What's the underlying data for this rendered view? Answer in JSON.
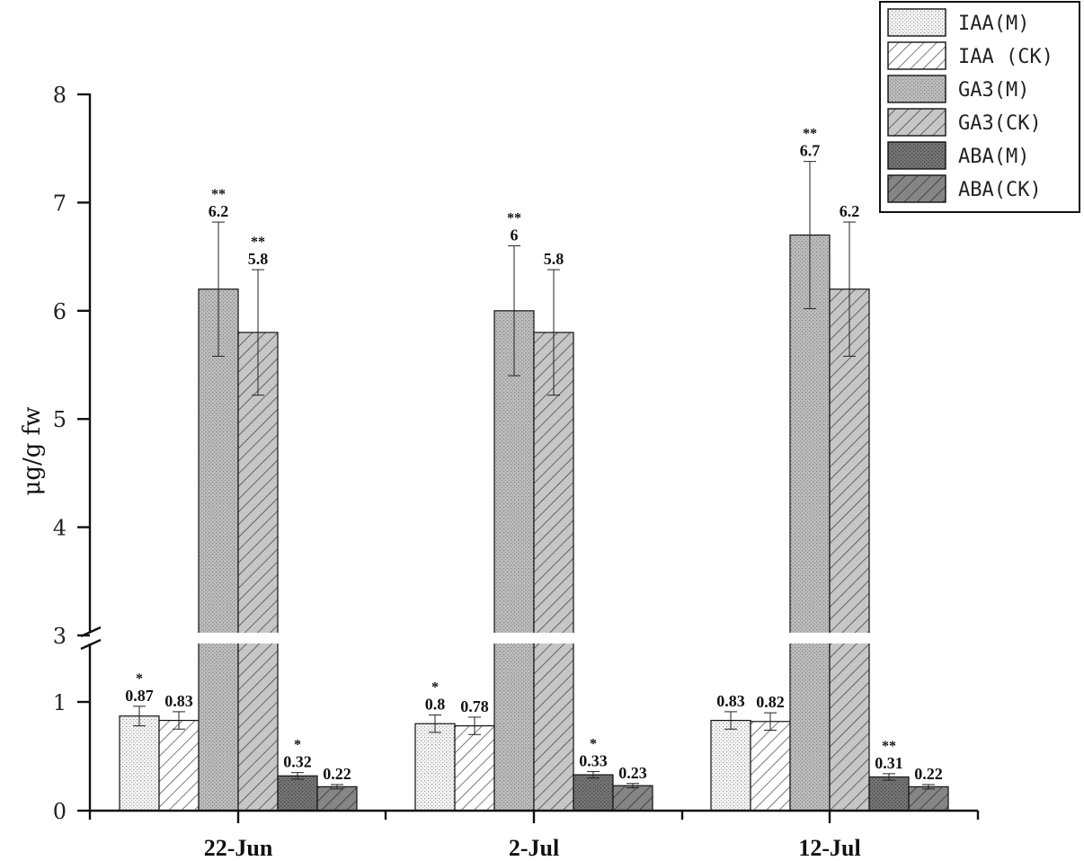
{
  "chart_data": {
    "type": "bar",
    "ylabel": "μg/g fw",
    "xlabel": "",
    "y_axis_break": {
      "lower": [
        0,
        1.5
      ],
      "upper": [
        3,
        8
      ]
    },
    "lower_ticks": [
      0,
      1
    ],
    "upper_ticks": [
      3,
      4,
      5,
      6,
      7,
      8
    ],
    "categories": [
      "22-Jun",
      "2-Jul",
      "12-Jul"
    ],
    "legend_position": "top-right",
    "grid": false,
    "series": [
      {
        "name": "IAA(M)",
        "pattern": "dots-light",
        "values": [
          0.87,
          0.8,
          0.83
        ],
        "errors": [
          0.09,
          0.08,
          0.08
        ],
        "labels": [
          "0.87",
          "0.8",
          "0.83"
        ],
        "sig": [
          "*",
          "*",
          ""
        ]
      },
      {
        "name": "IAA (CK)",
        "pattern": "hatch-light",
        "values": [
          0.83,
          0.78,
          0.82
        ],
        "errors": [
          0.08,
          0.08,
          0.08
        ],
        "labels": [
          "0.83",
          "0.78",
          "0.82"
        ],
        "sig": [
          "",
          "",
          ""
        ]
      },
      {
        "name": "GA3(M)",
        "pattern": "dots-mid",
        "values": [
          6.2,
          6.0,
          6.7
        ],
        "errors": [
          0.62,
          0.6,
          0.68
        ],
        "labels": [
          "6.2",
          "6",
          "6.7"
        ],
        "sig": [
          "**",
          "**",
          "**"
        ]
      },
      {
        "name": "GA3(CK)",
        "pattern": "hatch-mid",
        "values": [
          5.8,
          5.8,
          6.2
        ],
        "errors": [
          0.58,
          0.58,
          0.62
        ],
        "labels": [
          "5.8",
          "5.8",
          "6.2"
        ],
        "sig": [
          "**",
          "",
          ""
        ]
      },
      {
        "name": "ABA(M)",
        "pattern": "dots-dark",
        "values": [
          0.32,
          0.33,
          0.31
        ],
        "errors": [
          0.03,
          0.03,
          0.03
        ],
        "labels": [
          "0.32",
          "0.33",
          "0.31"
        ],
        "sig": [
          "*",
          "*",
          "**"
        ]
      },
      {
        "name": "ABA(CK)",
        "pattern": "hatch-dark",
        "values": [
          0.22,
          0.23,
          0.22
        ],
        "errors": [
          0.02,
          0.02,
          0.02
        ],
        "labels": [
          "0.22",
          "0.23",
          "0.22"
        ],
        "sig": [
          "",
          "",
          ""
        ]
      }
    ],
    "colors": {
      "dots-light": "#f2f2f2",
      "hatch-light": "#ffffff",
      "dots-mid": "#b4b4b4",
      "hatch-mid": "#c4c4c4",
      "dots-dark": "#6a6a6a",
      "hatch-dark": "#7c7c7c",
      "axis": "#111111"
    }
  }
}
